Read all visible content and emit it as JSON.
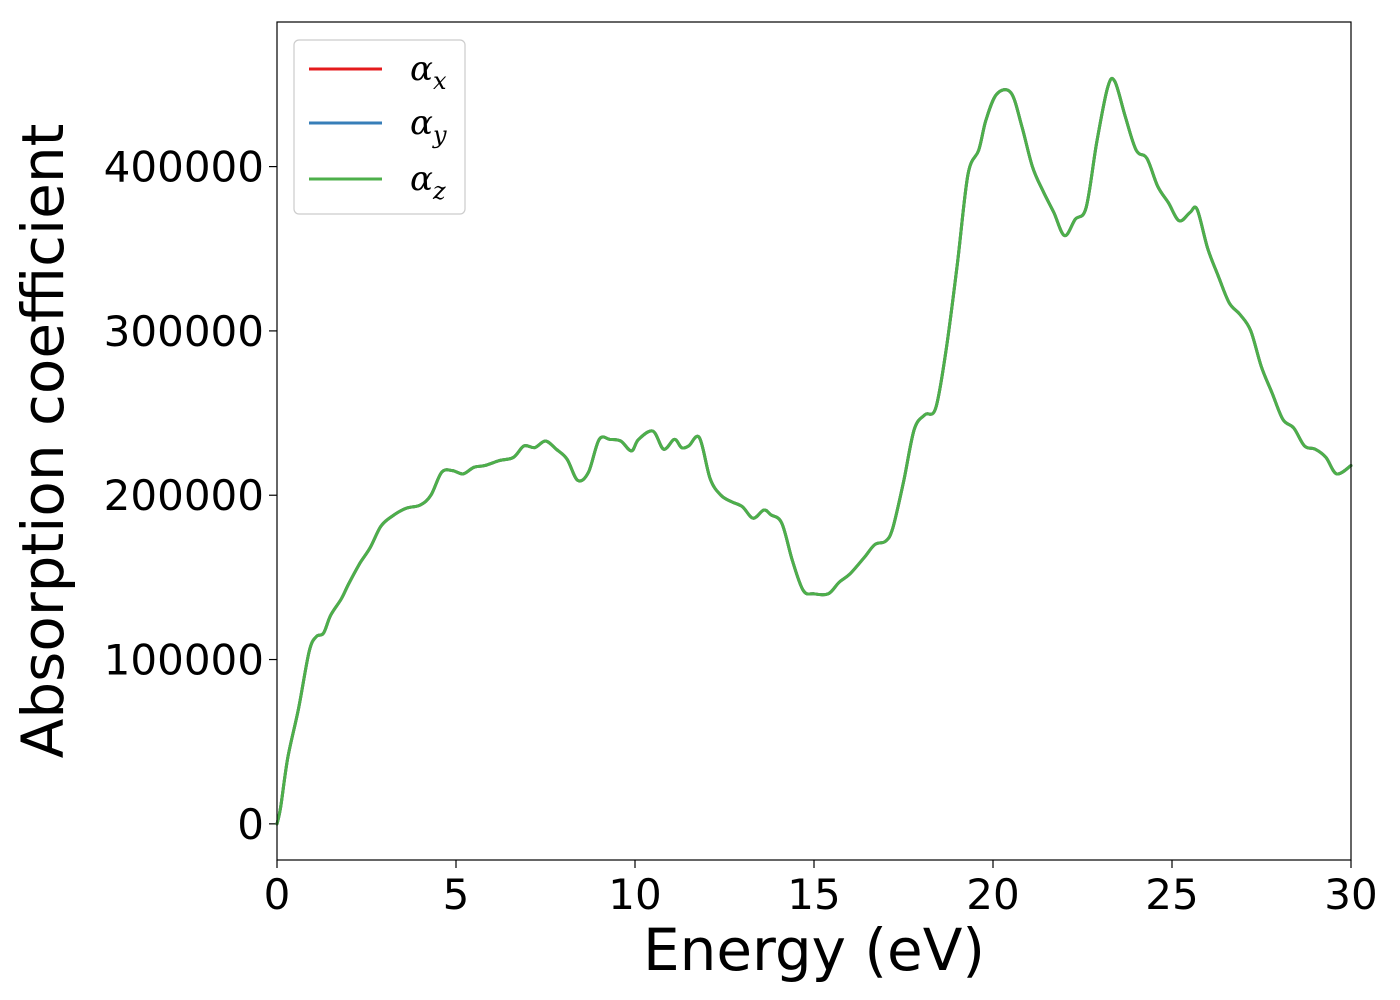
{
  "chart_data": {
    "type": "line",
    "xlabel": "Energy (eV)",
    "ylabel": "Absorption coefficient",
    "xlim": [
      0,
      30
    ],
    "ylim": [
      -22000,
      488000
    ],
    "x_ticks": [
      "0",
      "5",
      "10",
      "15",
      "20",
      "25",
      "30"
    ],
    "y_ticks": [
      "0",
      "100000",
      "200000",
      "300000",
      "400000"
    ],
    "grid": false,
    "legend_position": "top-left",
    "colors": {
      "alpha_x": "#e41a1c",
      "alpha_y": "#377eb8",
      "alpha_z": "#4daf4a"
    },
    "series": [
      {
        "key": "alpha_x",
        "name": "αx",
        "symbol": "α",
        "subscript": "x"
      },
      {
        "key": "alpha_y",
        "name": "αy",
        "symbol": "α",
        "subscript": "y"
      },
      {
        "key": "alpha_z",
        "name": "αz",
        "symbol": "α",
        "subscript": "z"
      }
    ],
    "x": [
      0,
      0.1,
      0.3,
      0.6,
      0.9,
      1.1,
      1.3,
      1.5,
      1.8,
      2.0,
      2.3,
      2.6,
      2.9,
      3.2,
      3.6,
      4.0,
      4.3,
      4.6,
      4.9,
      5.2,
      5.5,
      5.8,
      6.2,
      6.6,
      6.9,
      7.2,
      7.5,
      7.8,
      8.1,
      8.4,
      8.7,
      9.0,
      9.3,
      9.6,
      9.9,
      10.1,
      10.5,
      10.8,
      11.1,
      11.3,
      11.5,
      11.8,
      12.1,
      12.4,
      12.7,
      13.0,
      13.3,
      13.6,
      13.8,
      14.1,
      14.4,
      14.7,
      15.0,
      15.4,
      15.7,
      16.0,
      16.4,
      16.7,
      17.0,
      17.2,
      17.5,
      17.8,
      18.1,
      18.4,
      18.7,
      19.0,
      19.3,
      19.6,
      19.8,
      20.1,
      20.5,
      20.8,
      21.1,
      21.4,
      21.7,
      22.0,
      22.3,
      22.6,
      22.9,
      23.2,
      23.4,
      23.7,
      24.0,
      24.3,
      24.6,
      24.9,
      25.2,
      25.5,
      25.7,
      26.0,
      26.3,
      26.6,
      26.9,
      27.2,
      27.5,
      27.8,
      28.1,
      28.4,
      28.7,
      29.0,
      29.3,
      29.6,
      30.0
    ],
    "y": [
      0,
      10000,
      40000,
      70000,
      105000,
      114000,
      116000,
      127000,
      137000,
      146000,
      158000,
      168000,
      181000,
      187000,
      192000,
      194000,
      200000,
      214000,
      215000,
      213000,
      217000,
      218000,
      221000,
      223000,
      230000,
      229000,
      233000,
      228000,
      222000,
      209000,
      214000,
      234000,
      234000,
      233000,
      227000,
      234000,
      239000,
      228000,
      234000,
      229000,
      230000,
      235000,
      210000,
      200000,
      196000,
      193000,
      186000,
      191000,
      188000,
      183000,
      160000,
      142000,
      140000,
      140000,
      147000,
      152000,
      162000,
      170000,
      172000,
      180000,
      208000,
      240000,
      249000,
      253000,
      290000,
      340000,
      395000,
      410000,
      428000,
      444000,
      445000,
      425000,
      400000,
      385000,
      372000,
      358000,
      368000,
      375000,
      415000,
      448000,
      452000,
      430000,
      410000,
      405000,
      388000,
      378000,
      367000,
      372000,
      374000,
      350000,
      333000,
      317000,
      310000,
      300000,
      278000,
      262000,
      246000,
      241000,
      230000,
      228000,
      223000,
      213000,
      218000
    ]
  }
}
